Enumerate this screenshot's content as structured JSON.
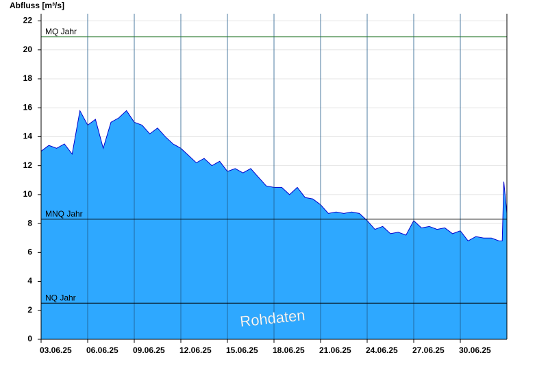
{
  "chart_data": {
    "type": "area",
    "y_label": "Abfluss [m³/s]",
    "watermark": "Rohdaten",
    "color": "#2ea8ff",
    "line_color": "#0000cc",
    "x": [
      0,
      0.5,
      1,
      1.5,
      2,
      2.5,
      3,
      3.5,
      4,
      4.5,
      5,
      5.5,
      6,
      6.5,
      7,
      7.5,
      8,
      8.5,
      9,
      9.5,
      10,
      10.5,
      11,
      11.5,
      12,
      12.5,
      13,
      13.5,
      14,
      14.5,
      15,
      15.5,
      16,
      16.5,
      17,
      17.5,
      18,
      18.5,
      19,
      19.5,
      20,
      20.5,
      21,
      21.5,
      22,
      22.5,
      23,
      23.5,
      24,
      24.5,
      25,
      25.5,
      26,
      26.5,
      27,
      27.5,
      28,
      28.5,
      29,
      29.5,
      29.7,
      29.8,
      30
    ],
    "values": [
      13.0,
      13.4,
      13.2,
      13.5,
      12.8,
      15.8,
      14.8,
      15.2,
      13.2,
      15.0,
      15.3,
      15.8,
      15.0,
      14.8,
      14.2,
      14.6,
      14.0,
      13.5,
      13.2,
      12.7,
      12.2,
      12.5,
      12.0,
      12.3,
      11.6,
      11.8,
      11.5,
      11.8,
      11.2,
      10.6,
      10.5,
      10.5,
      10.0,
      10.5,
      9.8,
      9.7,
      9.3,
      8.7,
      8.8,
      8.7,
      8.8,
      8.7,
      8.2,
      7.6,
      7.8,
      7.3,
      7.4,
      7.2,
      8.2,
      7.7,
      7.8,
      7.6,
      7.7,
      7.3,
      7.5,
      6.8,
      7.1,
      7.0,
      7.0,
      6.8,
      6.8,
      10.9,
      8.7
    ],
    "xlim": [
      0,
      30
    ],
    "xticks": [
      {
        "value": 0,
        "label": "03.06.25"
      },
      {
        "value": 3,
        "label": "06.06.25"
      },
      {
        "value": 6,
        "label": "09.06.25"
      },
      {
        "value": 9,
        "label": "12.06.25"
      },
      {
        "value": 12,
        "label": "15.06.25"
      },
      {
        "value": 15,
        "label": "18.06.25"
      },
      {
        "value": 18,
        "label": "21.06.25"
      },
      {
        "value": 21,
        "label": "24.06.25"
      },
      {
        "value": 24,
        "label": "27.06.25"
      },
      {
        "value": 27,
        "label": "30.06.25"
      }
    ],
    "ylim": [
      0,
      22.5
    ],
    "yticks": [
      0,
      2,
      4,
      6,
      8,
      10,
      12,
      14,
      16,
      18,
      20,
      22
    ],
    "grid": true,
    "reference_lines": [
      {
        "label": "MQ Jahr",
        "value": 20.9,
        "color": "#2e7d32"
      },
      {
        "label": "MNQ Jahr",
        "value": 8.3,
        "color": "#000000"
      },
      {
        "label": "NQ Jahr",
        "value": 2.5,
        "color": "#000000"
      }
    ]
  }
}
